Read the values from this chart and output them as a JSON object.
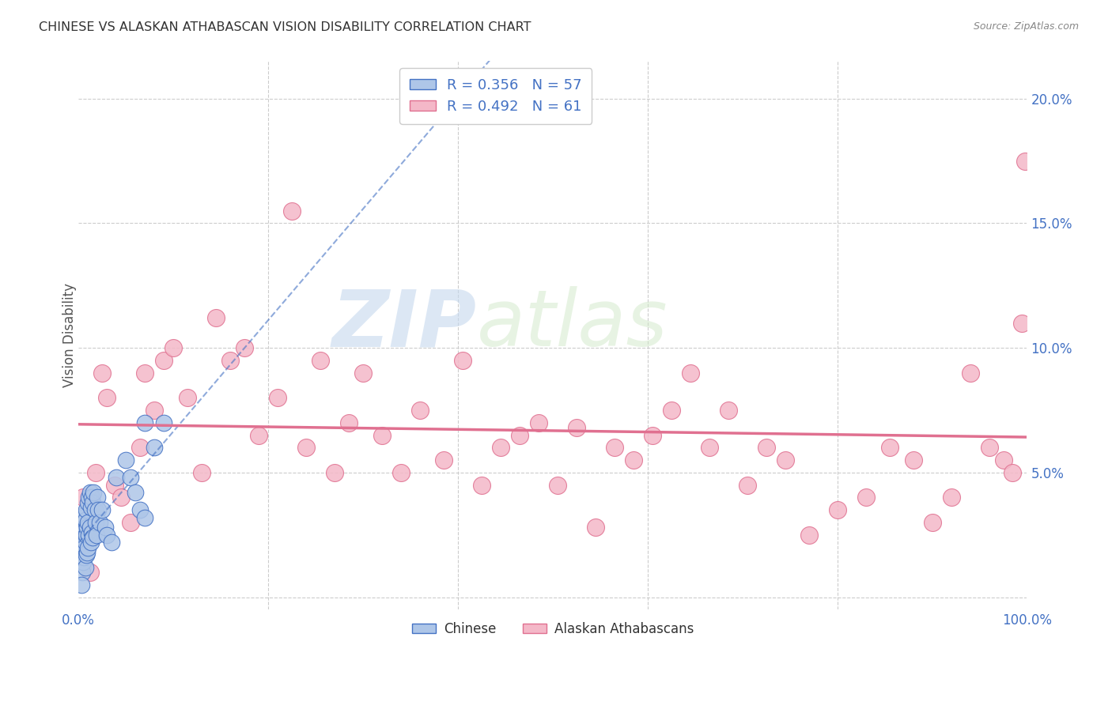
{
  "title": "CHINESE VS ALASKAN ATHABASCAN VISION DISABILITY CORRELATION CHART",
  "source": "Source: ZipAtlas.com",
  "ylabel": "Vision Disability",
  "xlim": [
    0.0,
    1.0
  ],
  "ylim": [
    -0.005,
    0.215
  ],
  "chinese_color": "#aec6e8",
  "chinese_edge_color": "#4472c4",
  "athabascan_color": "#f4b8c8",
  "athabascan_edge_color": "#e07090",
  "chinese_R": 0.356,
  "chinese_N": 57,
  "athabascan_R": 0.492,
  "athabascan_N": 61,
  "legend_label_1": "R = 0.356   N = 57",
  "legend_label_2": "R = 0.492   N = 61",
  "legend_bottom_1": "Chinese",
  "legend_bottom_2": "Alaskan Athabascans",
  "watermark_zip": "ZIP",
  "watermark_atlas": "atlas",
  "background_color": "#ffffff",
  "grid_color": "#cccccc",
  "tick_color": "#4472c4",
  "chinese_line_color": "#4472c4",
  "athabascan_line_color": "#e07090",
  "chinese_points_x": [
    0.001,
    0.002,
    0.002,
    0.003,
    0.003,
    0.003,
    0.004,
    0.004,
    0.004,
    0.005,
    0.005,
    0.005,
    0.006,
    0.006,
    0.006,
    0.007,
    0.007,
    0.007,
    0.008,
    0.008,
    0.008,
    0.009,
    0.009,
    0.01,
    0.01,
    0.01,
    0.011,
    0.011,
    0.012,
    0.012,
    0.013,
    0.013,
    0.014,
    0.014,
    0.015,
    0.015,
    0.016,
    0.017,
    0.018,
    0.019,
    0.02,
    0.021,
    0.022,
    0.025,
    0.028,
    0.03,
    0.035,
    0.04,
    0.05,
    0.055,
    0.06,
    0.065,
    0.07,
    0.08,
    0.09,
    0.003,
    0.07
  ],
  "chinese_points_y": [
    0.03,
    0.025,
    0.02,
    0.028,
    0.022,
    0.015,
    0.032,
    0.018,
    0.01,
    0.026,
    0.02,
    0.014,
    0.033,
    0.024,
    0.016,
    0.031,
    0.022,
    0.012,
    0.035,
    0.025,
    0.017,
    0.028,
    0.018,
    0.038,
    0.03,
    0.02,
    0.04,
    0.025,
    0.042,
    0.028,
    0.036,
    0.022,
    0.04,
    0.026,
    0.038,
    0.024,
    0.042,
    0.035,
    0.03,
    0.025,
    0.04,
    0.035,
    0.03,
    0.035,
    0.028,
    0.025,
    0.022,
    0.048,
    0.055,
    0.048,
    0.042,
    0.035,
    0.032,
    0.06,
    0.07,
    0.005,
    0.07
  ],
  "athabascan_points_x": [
    0.005,
    0.012,
    0.018,
    0.025,
    0.03,
    0.038,
    0.045,
    0.055,
    0.065,
    0.07,
    0.08,
    0.09,
    0.1,
    0.115,
    0.13,
    0.145,
    0.16,
    0.175,
    0.19,
    0.21,
    0.225,
    0.24,
    0.255,
    0.27,
    0.285,
    0.3,
    0.32,
    0.34,
    0.36,
    0.385,
    0.405,
    0.425,
    0.445,
    0.465,
    0.485,
    0.505,
    0.525,
    0.545,
    0.565,
    0.585,
    0.605,
    0.625,
    0.645,
    0.665,
    0.685,
    0.705,
    0.725,
    0.745,
    0.77,
    0.8,
    0.83,
    0.855,
    0.88,
    0.9,
    0.92,
    0.94,
    0.96,
    0.975,
    0.985,
    0.995,
    0.998
  ],
  "athabascan_points_y": [
    0.04,
    0.01,
    0.05,
    0.09,
    0.08,
    0.045,
    0.04,
    0.03,
    0.06,
    0.09,
    0.075,
    0.095,
    0.1,
    0.08,
    0.05,
    0.112,
    0.095,
    0.1,
    0.065,
    0.08,
    0.155,
    0.06,
    0.095,
    0.05,
    0.07,
    0.09,
    0.065,
    0.05,
    0.075,
    0.055,
    0.095,
    0.045,
    0.06,
    0.065,
    0.07,
    0.045,
    0.068,
    0.028,
    0.06,
    0.055,
    0.065,
    0.075,
    0.09,
    0.06,
    0.075,
    0.045,
    0.06,
    0.055,
    0.025,
    0.035,
    0.04,
    0.06,
    0.055,
    0.03,
    0.04,
    0.09,
    0.06,
    0.055,
    0.05,
    0.11,
    0.175
  ]
}
